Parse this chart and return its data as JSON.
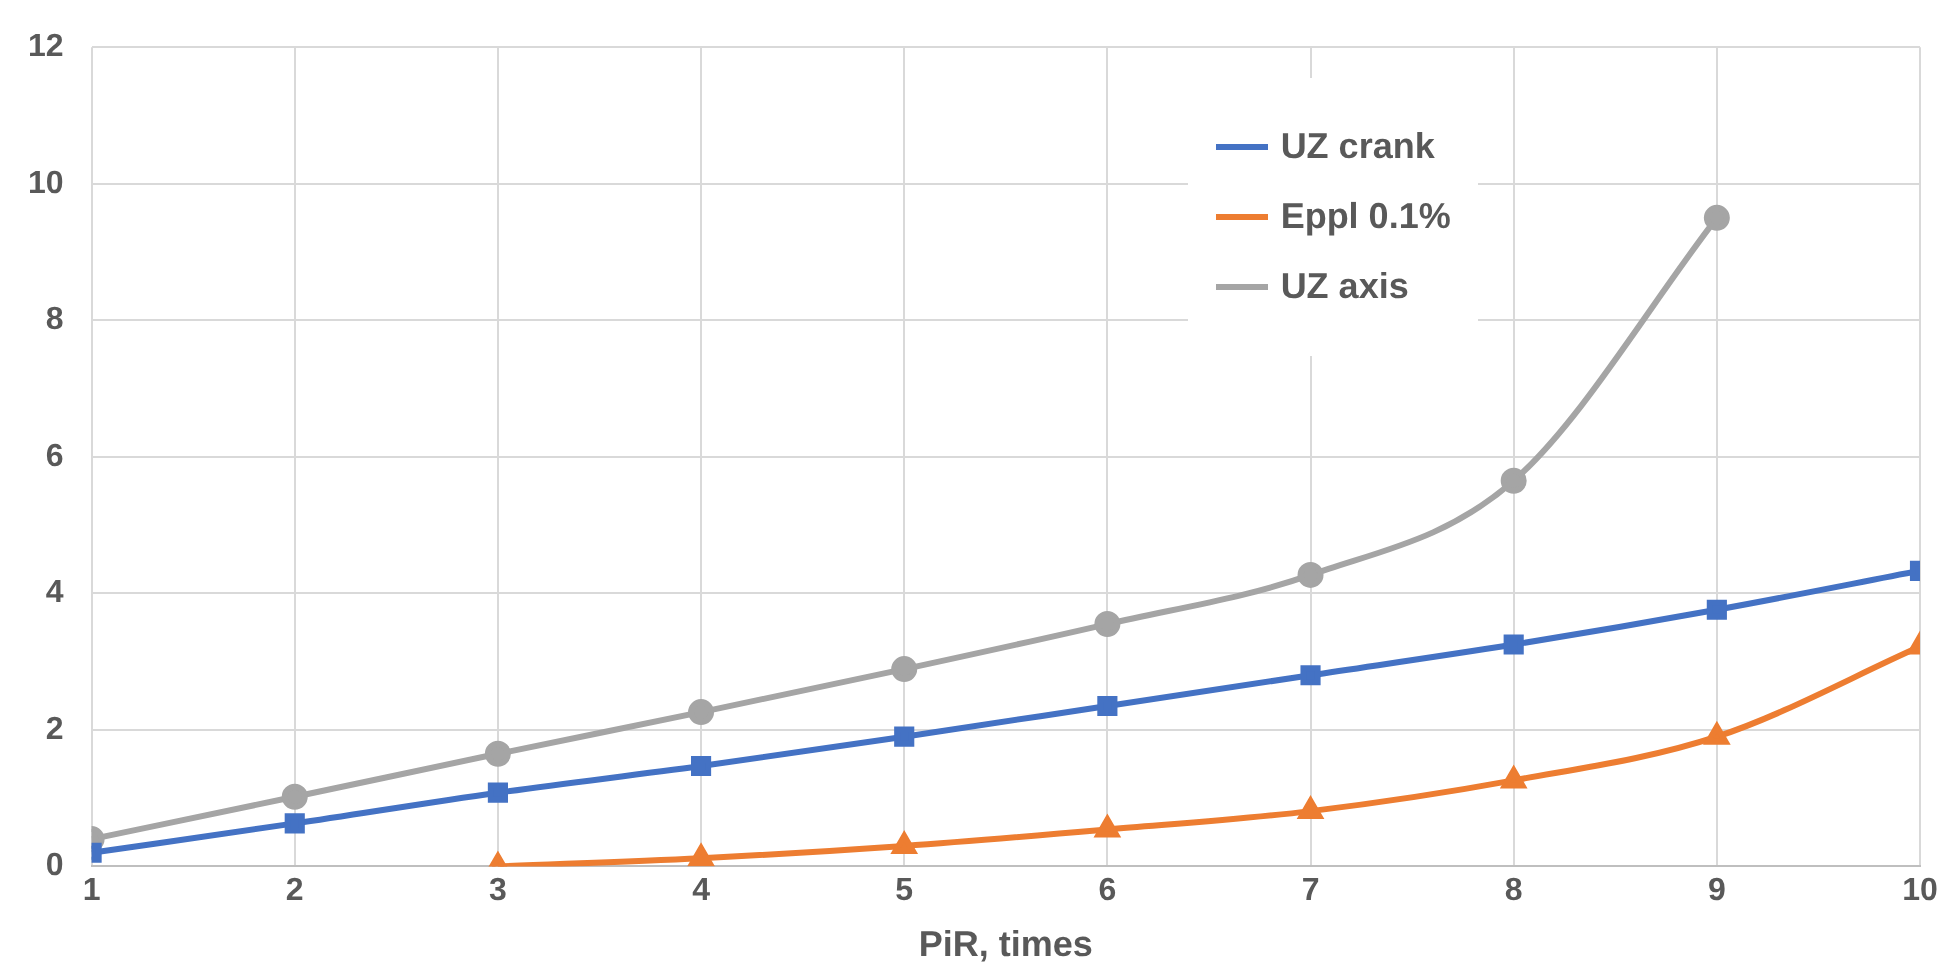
{
  "chart_data": {
    "type": "line",
    "xlabel": "PiR, times",
    "x": [
      1,
      2,
      3,
      4,
      5,
      6,
      7,
      8,
      9,
      10
    ],
    "xlim": [
      1,
      10
    ],
    "xticks": [
      1,
      2,
      3,
      4,
      5,
      6,
      7,
      8,
      9,
      10
    ],
    "ylim": [
      0,
      12
    ],
    "yticks": [
      0,
      2,
      4,
      6,
      8,
      10,
      12
    ],
    "grid": true,
    "legend": "top right",
    "series": [
      {
        "name": "UZ crank",
        "color": "#4472c4",
        "marker": "square",
        "values": [
          0.2,
          0.63,
          1.08,
          1.47,
          1.9,
          2.35,
          2.8,
          3.25,
          3.76,
          4.33
        ]
      },
      {
        "name": "Eppl 0.1%",
        "color": "#ed7d31",
        "marker": "triangle",
        "values": [
          null,
          null,
          0,
          0.12,
          0.3,
          0.54,
          0.81,
          1.26,
          1.9,
          3.22
        ]
      },
      {
        "name": "UZ axis",
        "color": "#a5a5a5",
        "marker": "circle",
        "values": [
          0.4,
          1.02,
          1.65,
          2.26,
          2.89,
          3.55,
          4.27,
          5.65,
          9.5,
          null
        ]
      }
    ]
  }
}
